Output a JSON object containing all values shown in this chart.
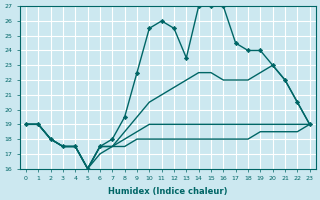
{
  "xlabel": "Humidex (Indice chaleur)",
  "bg_color": "#cce8f0",
  "grid_color": "#ffffff",
  "line_color": "#006666",
  "xlim": [
    -0.5,
    23.5
  ],
  "ylim": [
    16,
    27
  ],
  "xticks": [
    0,
    1,
    2,
    3,
    4,
    5,
    6,
    7,
    8,
    9,
    10,
    11,
    12,
    13,
    14,
    15,
    16,
    17,
    18,
    19,
    20,
    21,
    22,
    23
  ],
  "yticks": [
    16,
    17,
    18,
    19,
    20,
    21,
    22,
    23,
    24,
    25,
    26,
    27
  ],
  "s1_x": [
    0,
    1,
    2,
    3,
    4,
    5,
    6,
    7,
    8,
    9,
    10,
    11,
    12,
    13,
    14,
    15,
    16,
    17,
    18,
    19,
    20,
    21,
    22,
    23
  ],
  "s1_y": [
    19,
    19,
    18,
    17.5,
    17.5,
    16,
    17.5,
    18,
    19.5,
    22.5,
    25.5,
    26,
    25.5,
    23.5,
    27,
    27,
    27,
    24.5,
    24,
    24,
    23,
    22,
    20.5,
    19
  ],
  "s2_x": [
    0,
    1,
    2,
    3,
    4,
    5,
    6,
    7,
    8,
    9,
    10,
    11,
    12,
    13,
    14,
    15,
    16,
    17,
    18,
    19,
    20,
    21,
    22,
    23
  ],
  "s2_y": [
    19,
    19,
    18,
    17.5,
    17.5,
    16,
    17.5,
    17.5,
    18.5,
    19.5,
    20.5,
    21,
    21.5,
    22,
    22.5,
    22.5,
    22,
    22,
    22,
    22.5,
    23,
    22,
    20.5,
    19
  ],
  "s3_x": [
    0,
    1,
    2,
    3,
    4,
    5,
    6,
    7,
    8,
    9,
    10,
    11,
    12,
    13,
    14,
    15,
    16,
    17,
    18,
    19,
    20,
    21,
    22,
    23
  ],
  "s3_y": [
    19,
    19,
    18,
    17.5,
    17.5,
    16,
    17.5,
    17.5,
    18,
    18.5,
    19,
    19,
    19,
    19,
    19,
    19,
    19,
    19,
    19,
    19,
    19,
    19,
    19,
    19
  ],
  "s4_x": [
    0,
    1,
    2,
    3,
    4,
    5,
    6,
    7,
    8,
    9,
    10,
    11,
    12,
    13,
    14,
    15,
    16,
    17,
    18,
    19,
    20,
    21,
    22,
    23
  ],
  "s4_y": [
    19,
    19,
    18,
    17.5,
    17.5,
    16,
    17,
    17.5,
    17.5,
    18,
    18,
    18,
    18,
    18,
    18,
    18,
    18,
    18,
    18,
    18.5,
    18.5,
    18.5,
    18.5,
    19
  ]
}
